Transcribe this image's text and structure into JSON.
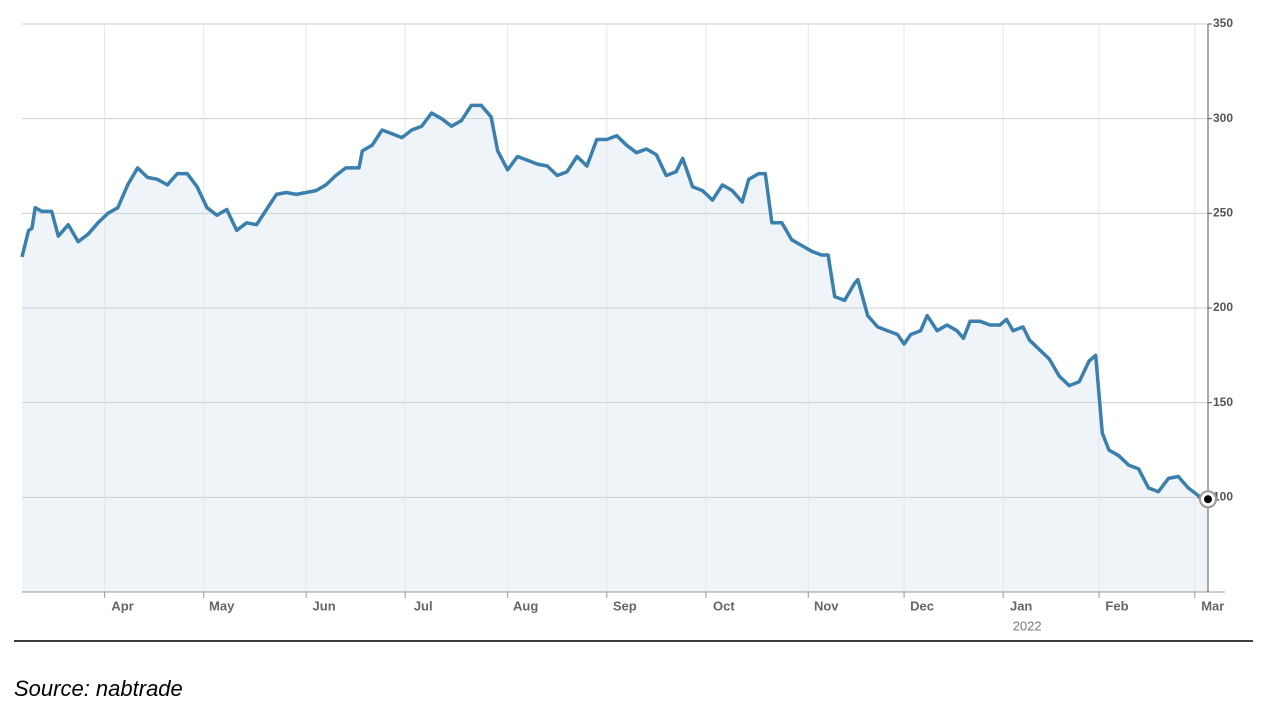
{
  "chart_data": {
    "type": "line",
    "source": "Source: nabtrade",
    "x": [
      0,
      2,
      3,
      4,
      6,
      9,
      11,
      14,
      17,
      20,
      23,
      26,
      29,
      32,
      35,
      38,
      41,
      44,
      47,
      50,
      53,
      56,
      59,
      62,
      65,
      68,
      71,
      74,
      77,
      80,
      83,
      86,
      89,
      92,
      95,
      98,
      102,
      103,
      106,
      109,
      112,
      115,
      118,
      121,
      124,
      127,
      130,
      133,
      136,
      139,
      142,
      144,
      147,
      150,
      153,
      156,
      159,
      162,
      165,
      168,
      171,
      174,
      177,
      180,
      183,
      186,
      189,
      192,
      195,
      198,
      200,
      203,
      206,
      209,
      212,
      215,
      218,
      220,
      223,
      225,
      227,
      230,
      233,
      236,
      239,
      242,
      244,
      246,
      249,
      252,
      253,
      256,
      259,
      262,
      265,
      267,
      269,
      272,
      274,
      277,
      280,
      283,
      285,
      287,
      290,
      293,
      296,
      298,
      300,
      303,
      305,
      308,
      311,
      314,
      317,
      320,
      323,
      325,
      327,
      329,
      332,
      335,
      338,
      341,
      344,
      347,
      350,
      353,
      356,
      358,
      359
    ],
    "series": [
      {
        "color": "#3a7fad",
        "fill": "#eef4f8",
        "values": [
          227,
          241,
          242,
          253,
          251,
          251,
          238,
          244,
          235,
          239,
          245,
          250,
          253,
          265,
          274,
          269,
          268,
          265,
          271,
          271,
          264,
          253,
          249,
          252,
          241,
          245,
          244,
          252,
          260,
          261,
          260,
          261,
          262,
          265,
          270,
          274,
          274,
          283,
          286,
          294,
          292,
          290,
          294,
          296,
          303,
          300,
          296,
          299,
          307,
          307,
          301,
          283,
          273,
          280,
          278,
          276,
          275,
          270,
          272,
          280,
          275,
          289,
          289,
          291,
          286,
          282,
          284,
          281,
          270,
          272,
          279,
          264,
          262,
          257,
          265,
          262,
          256,
          268,
          271,
          271,
          245,
          245,
          236,
          233,
          230,
          228,
          228,
          206,
          204,
          213,
          215,
          196,
          190,
          188,
          186,
          181,
          186,
          188,
          196,
          188,
          191,
          188,
          184,
          193,
          193,
          191,
          191,
          194,
          188,
          190,
          183,
          178,
          173,
          164,
          159,
          161,
          172,
          175,
          134,
          125,
          122,
          117,
          115,
          105,
          103,
          110,
          111,
          105,
          101,
          96,
          99
        ]
      }
    ],
    "xlim": [
      0,
      359
    ],
    "xticks": [
      {
        "value": 25,
        "label": "Apr"
      },
      {
        "value": 55,
        "label": "May"
      },
      {
        "value": 86,
        "label": "Jun"
      },
      {
        "value": 116,
        "label": "Jul"
      },
      {
        "value": 147,
        "label": "Aug"
      },
      {
        "value": 177,
        "label": "Sep"
      },
      {
        "value": 207,
        "label": "Oct"
      },
      {
        "value": 238,
        "label": "Nov"
      },
      {
        "value": 267,
        "label": "Dec"
      },
      {
        "value": 297,
        "label": "Jan"
      },
      {
        "value": 326,
        "label": "Feb"
      },
      {
        "value": 355,
        "label": "Mar"
      }
    ],
    "x_sublabels": [
      {
        "value": 297,
        "label": "2022"
      }
    ],
    "ylim": [
      50,
      350
    ],
    "yticks": [
      100,
      150,
      200,
      250,
      300,
      350
    ],
    "grid": true,
    "end_marker": true
  }
}
